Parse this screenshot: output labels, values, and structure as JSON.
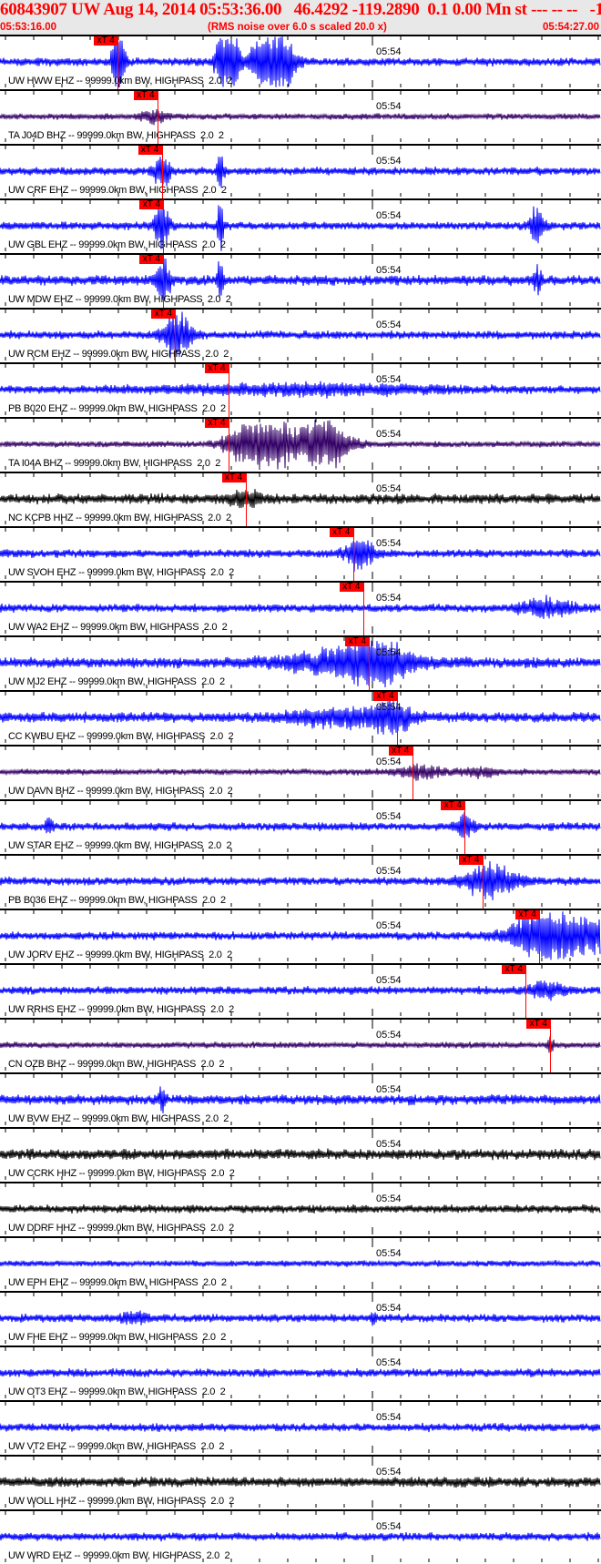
{
  "header": {
    "title": "60843907 UW Aug 14, 2014 05:53:36.00   46.4292 -119.2890  0.1 0.00 Mn st --- -- --   -1",
    "start_time": "05:53:16.00",
    "note": "(RMS noise over 6.0 s scaled 20.0 x)",
    "end_time": "05:54:27.00"
  },
  "time_mark": "05:54",
  "pick_label": "xT 4",
  "colors": {
    "header_text": "#ff0000",
    "pick": "#ff0000",
    "blue": "#0000ff",
    "purple": "#330066",
    "black": "#000000"
  },
  "traces": [
    {
      "label": "UW HWW EHZ -- 99999.0km BW, HIGHPASS  2.0  2",
      "color": "blue",
      "pick": "05:53:29.9"
    },
    {
      "label": "TA J04D BHZ -- 99999.0km BW, HIGHPASS  2.0  2",
      "color": "purple",
      "pick": "05:53:34.6"
    },
    {
      "label": "UW CRF EHZ -- 99999.0km BW, HIGHPASS  2.0  2",
      "color": "blue",
      "pick": "05:53:35.1"
    },
    {
      "label": "UW GBL EHZ -- 99999.0km BW, HIGHPASS  2.0  2",
      "color": "blue",
      "pick": "05:53:35.3"
    },
    {
      "label": "UW MDW EHZ -- 99999.0km BW, HIGHPASS  2.0  2",
      "color": "blue",
      "pick": "05:53:35.3"
    },
    {
      "label": "UW RCM EHZ -- 99999.0km BW, HIGHPASS  2.0  2",
      "color": "blue",
      "pick": "05:53:36.7"
    },
    {
      "label": "PB B020 EHZ -- 99999.0km BW, HIGHPASS  2.0  2",
      "color": "blue",
      "pick": "05:53:43.0"
    },
    {
      "label": "TA I04A BHZ -- 99999.0km BW, HIGHPASS  2.0  2",
      "color": "purple",
      "pick": "05:53:43.0"
    },
    {
      "label": "NC KCPB HHZ -- 99999.0km BW, HIGHPASS  2.0  2",
      "color": "black",
      "pick": "05:53:45.0"
    },
    {
      "label": "UW SVOH EHZ -- 99999.0km BW, HIGHPASS  2.0  2",
      "color": "blue",
      "pick": "05:53:57.7"
    },
    {
      "label": "UW WA2 EHZ -- 99999.0km BW, HIGHPASS  2.0  2",
      "color": "blue",
      "pick": "05:53:58.9"
    },
    {
      "label": "UW MJ2 EHZ -- 99999.0km BW, HIGHPASS  2.0  2",
      "color": "blue",
      "pick": "05:53:59.6"
    },
    {
      "label": "CC KWBU EHZ -- 99999.0km BW, HIGHPASS  2.0  2",
      "color": "blue",
      "pick": "05:54:02.9"
    },
    {
      "label": "UW DAVN BHZ -- 99999.0km BW, HIGHPASS  2.0  2",
      "color": "purple",
      "pick": "05:54:04.7"
    },
    {
      "label": "UW STAR EHZ -- 99999.0km BW, HIGHPASS  2.0  2",
      "color": "blue",
      "pick": "05:54:10.9"
    },
    {
      "label": "PB B036 EHZ -- 99999.0km BW, HIGHPASS  2.0  2",
      "color": "blue",
      "pick": "05:54:13.0"
    },
    {
      "label": "UW JORV EHZ -- 99999.0km BW, HIGHPASS  2.0  2",
      "color": "blue",
      "pick": "05:54:19.7"
    },
    {
      "label": "UW RRHS EHZ -- 99999.0km BW, HIGHPASS  2.0  2",
      "color": "blue",
      "pick": "05:54:18.1"
    },
    {
      "label": "CN OZB BHZ -- 99999.0km BW, HIGHPASS  2.0  2",
      "color": "purple",
      "pick": "05:54:21.0"
    },
    {
      "label": "UW BVW EHZ -- 99999.0km BW, HIGHPASS  2.0  2",
      "color": "blue"
    },
    {
      "label": "UW CCRK HHZ -- 99999.0km BW, HIGHPASS  2.0  2",
      "color": "black"
    },
    {
      "label": "UW DDRF HHZ -- 99999.0km BW, HIGHPASS  2.0  2",
      "color": "black"
    },
    {
      "label": "UW EPH EHZ -- 99999.0km BW, HIGHPASS  2.0  2",
      "color": "blue"
    },
    {
      "label": "UW FHE EHZ -- 99999.0km BW, HIGHPASS  2.0  2",
      "color": "blue"
    },
    {
      "label": "UW OT3 EHZ -- 99999.0km BW, HIGHPASS  2.0  2",
      "color": "blue"
    },
    {
      "label": "UW VT2 EHZ -- 99999.0km BW, HIGHPASS  2.0  2",
      "color": "blue"
    },
    {
      "label": "UW WOLL HHZ -- 99999.0km BW, HIGHPASS  2.0  2",
      "color": "black"
    },
    {
      "label": "UW WRD EHZ -- 99999.0km BW, HIGHPASS  2.0  2",
      "color": "blue"
    }
  ]
}
